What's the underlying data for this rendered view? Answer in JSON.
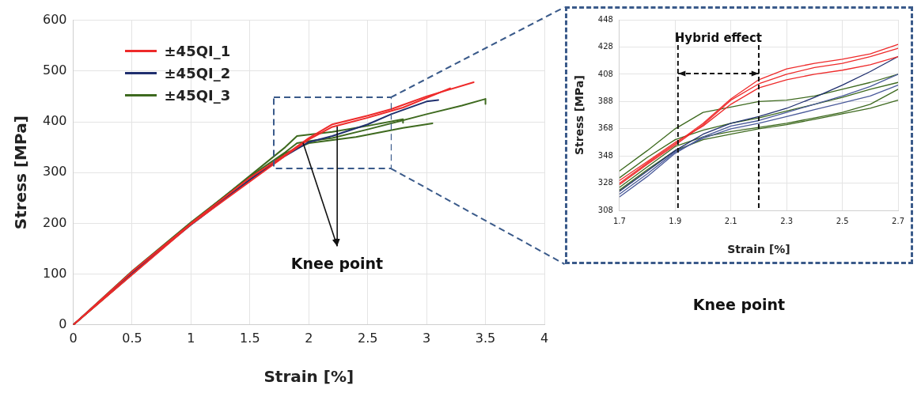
{
  "chart_data": [
    {
      "type": "line",
      "xlabel": "Strain [%]",
      "ylabel": "Stress [MPa]",
      "xlim": [
        0,
        4
      ],
      "ylim": [
        0,
        600
      ],
      "xticks": [
        0,
        0.5,
        1,
        1.5,
        2,
        2.5,
        3,
        3.5,
        4
      ],
      "yticks": [
        0,
        100,
        200,
        300,
        400,
        500,
        600
      ],
      "grid": true,
      "legend": "top left",
      "marker": "none",
      "line_style": "solid",
      "annotations": [
        {
          "text": "Knee point",
          "x": 1.95,
          "y": 358
        }
      ],
      "series": [
        {
          "name": "±45QI_1",
          "color": "#ee2a2a",
          "x": [
            0,
            0.5,
            1,
            1.5,
            1.8,
            2,
            2.2,
            2.5,
            2.7,
            3,
            3.4
          ],
          "values": [
            0,
            105,
            200,
            290,
            335,
            368,
            395,
            412,
            425,
            450,
            478
          ]
        },
        {
          "color": "#ee2a2a",
          "x": [
            0,
            1,
            1.8,
            2,
            2.2,
            2.5,
            2.8,
            3.2
          ],
          "values": [
            0,
            198,
            333,
            365,
            390,
            408,
            428,
            466
          ]
        },
        {
          "name": "±45QI_2",
          "color": "#1f2f6e",
          "x": [
            0,
            0.5,
            1,
            1.5,
            1.8,
            2,
            2.2,
            2.5,
            2.7,
            3,
            3.1
          ],
          "values": [
            0,
            103,
            197,
            286,
            333,
            360,
            372,
            395,
            415,
            440,
            443
          ]
        },
        {
          "name": "±45QI_3",
          "color": "#3e6a1f",
          "x": [
            0,
            0.5,
            1,
            1.5,
            1.8,
            1.9,
            2,
            2.2,
            2.5,
            3,
            3.3,
            3.5,
            3.5
          ],
          "values": [
            0,
            106,
            202,
            292,
            340,
            358,
            362,
            368,
            385,
            415,
            432,
            445,
            435
          ]
        },
        {
          "color": "#3e6a1f",
          "x": [
            0,
            1,
            1.8,
            1.9,
            2.2,
            2.5,
            2.8,
            2.8
          ],
          "values": [
            0,
            200,
            350,
            372,
            380,
            392,
            405,
            398
          ]
        },
        {
          "color": "#3e6a1f",
          "x": [
            0,
            1,
            1.8,
            2,
            2.4,
            2.8,
            3.05
          ],
          "values": [
            0,
            199,
            338,
            358,
            370,
            388,
            397
          ]
        }
      ]
    },
    {
      "type": "line",
      "xlabel": "Strain [%]",
      "ylabel": "Stress [MPa]",
      "xlim": [
        1.7,
        2.7
      ],
      "ylim": [
        308,
        448
      ],
      "xticks": [
        1.7,
        1.9,
        2.1,
        2.3,
        2.5,
        2.7
      ],
      "yticks": [
        308,
        328,
        348,
        368,
        388,
        408,
        428,
        448
      ],
      "grid": true,
      "marker": "none",
      "line_style": "solid",
      "x": [
        1.7,
        1.8,
        1.9,
        2,
        2.1,
        2.2,
        2.3,
        2.4,
        2.5,
        2.6,
        2.7
      ],
      "ref_lines": [
        {
          "axis": "x",
          "value": 1.91,
          "color": "#111111",
          "line_style": "dashed"
        },
        {
          "axis": "x",
          "value": 2.2,
          "color": "#111111",
          "line_style": "dashed"
        }
      ],
      "annotations": [
        "Hybrid effect",
        "Knee point"
      ],
      "series": [
        {
          "color": "#ee2a2a",
          "values": [
            328,
            343,
            357,
            372,
            390,
            404,
            412,
            416,
            419,
            423,
            430
          ]
        },
        {
          "color": "#ee2a2a",
          "values": [
            327,
            342,
            356,
            371,
            389,
            401,
            408,
            413,
            416,
            421,
            427
          ]
        },
        {
          "color": "#ee2a2a",
          "values": [
            330,
            344,
            358,
            370,
            386,
            398,
            404,
            408,
            411,
            415,
            421
          ]
        },
        {
          "color": "#1f2f6e",
          "values": [
            322,
            337,
            352,
            364,
            372,
            377,
            383,
            391,
            400,
            410,
            421
          ]
        },
        {
          "color": "#4a5a9a",
          "values": [
            318,
            333,
            350,
            362,
            370,
            374,
            380,
            386,
            392,
            399,
            408
          ]
        },
        {
          "color": "#4a5a9a",
          "values": [
            320,
            335,
            351,
            361,
            368,
            372,
            377,
            382,
            387,
            392,
            400
          ]
        },
        {
          "color": "#3e6a1f",
          "values": [
            337,
            352,
            368,
            380,
            384,
            388,
            389,
            392,
            397,
            402,
            408
          ]
        },
        {
          "color": "#3e6a1f",
          "values": [
            332,
            347,
            360,
            367,
            372,
            376,
            381,
            386,
            391,
            397,
            402
          ]
        },
        {
          "color": "#3e6a1f",
          "values": [
            325,
            340,
            355,
            362,
            366,
            369,
            372,
            376,
            380,
            386,
            397
          ]
        },
        {
          "color": "#3e6a1f",
          "values": [
            323,
            338,
            352,
            360,
            364,
            368,
            371,
            375,
            379,
            383,
            389
          ]
        }
      ]
    }
  ]
}
